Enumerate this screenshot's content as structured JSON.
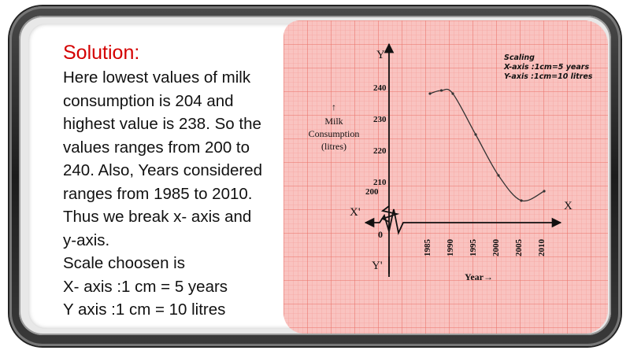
{
  "solution": {
    "title": "Solution:",
    "lines": [
      "Here lowest values of   milk",
      "consumption  is   204   and",
      "highest value is 238. So the",
      "values ranges from  200 to",
      "240. Also, Years considered",
      "ranges from 1985 to 2010.",
      "Thus we break x- axis and",
      "y-axis.",
      "Scale choosen is",
      "X- axis :1 cm = 5 years",
      "Y axis :1 cm = 10 litres"
    ]
  },
  "colors": {
    "title": "#d40000",
    "grid_bg": "#f9c3c0",
    "grid_minor": "#f39a94",
    "grid_major": "#ea7168"
  },
  "chart_data": {
    "type": "line",
    "title": "",
    "xlabel": "Year→",
    "ylabel_lines": [
      "↑",
      "Milk",
      "Consumption",
      "(litres)"
    ],
    "axis_y_label": "Y",
    "axis_y_neg_label": "Y'",
    "axis_x_label": "X",
    "axis_x_neg_label": "X'",
    "origin_label": "0",
    "scaling": {
      "heading": "Scaling",
      "x": "X-axis :1cm=5 years",
      "y": "Y-axis :1cm=10 litres"
    },
    "x_ticks": [
      "1985",
      "1990",
      "1995",
      "2000",
      "2005",
      "2010"
    ],
    "y_ticks": [
      "200",
      "210",
      "220",
      "230",
      "240"
    ],
    "xlim": [
      1985,
      2010
    ],
    "ylim": [
      200,
      240
    ],
    "series": [
      {
        "x": [
          1985,
          1987.5,
          1990,
          1995,
          2000,
          2005,
          2010
        ],
        "y": [
          238,
          239,
          238,
          225,
          212,
          204,
          207
        ]
      }
    ]
  }
}
